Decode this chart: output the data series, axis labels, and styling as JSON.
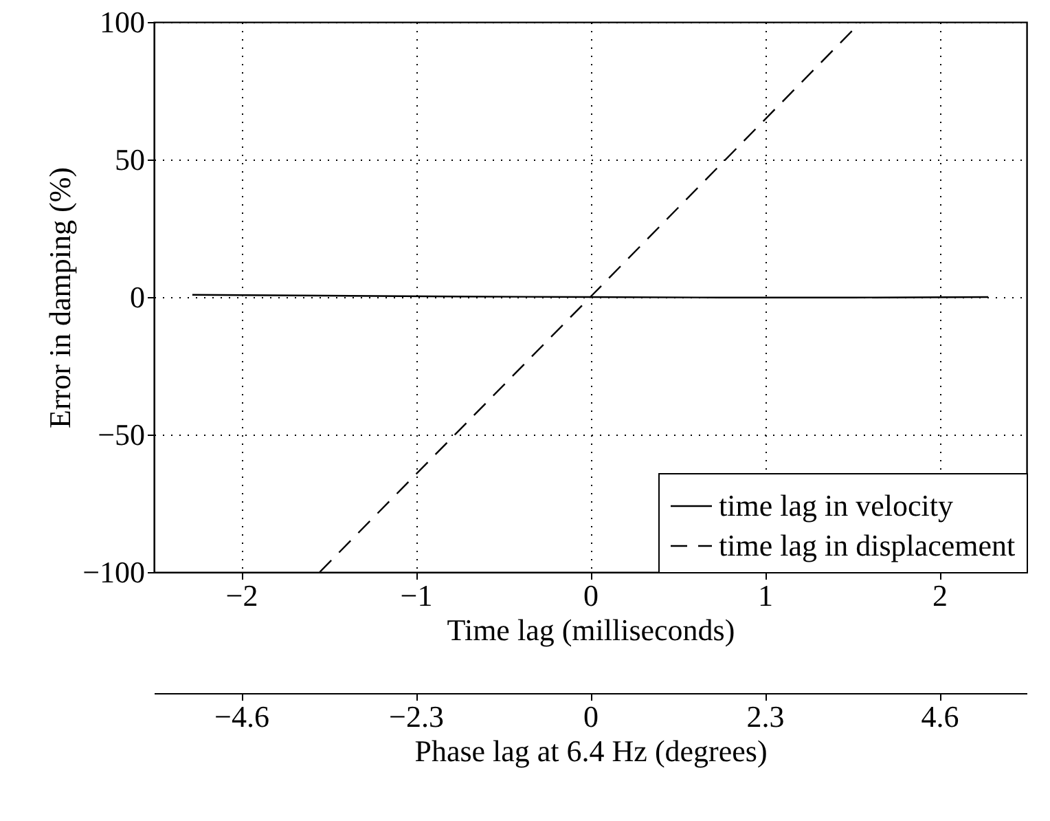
{
  "chart_data": {
    "type": "line",
    "xlabel": "Time lag (milliseconds)",
    "ylabel": "Error in damping (%)",
    "x2label": "Phase lag at 6.4 Hz (degrees)",
    "series": [
      {
        "name": "time lag in velocity",
        "color": "#000000",
        "line_style": "solid",
        "x": [
          -2.28,
          -1.5,
          -0.75,
          0,
          0.75,
          1.5,
          2.28
        ],
        "values": [
          0.8,
          0.5,
          0.2,
          0,
          -0.2,
          -0.2,
          0
        ]
      },
      {
        "name": "time lag in displacement",
        "color": "#000000",
        "line_style": "dashed",
        "x": [
          -1.55,
          0,
          1.55
        ],
        "values": [
          -100,
          0,
          100
        ]
      }
    ],
    "xlim": [
      -2.5,
      2.5
    ],
    "xticks": [
      {
        "value": -2,
        "label": "−2"
      },
      {
        "value": -1,
        "label": "−1"
      },
      0,
      1,
      2
    ],
    "ylim": [
      -100,
      100
    ],
    "yticks": [
      {
        "value": -100,
        "label": "−100"
      },
      {
        "value": -50,
        "label": "−50"
      },
      0,
      50,
      100
    ],
    "x2lim": [
      -5.76,
      5.76
    ],
    "x2ticks": [
      {
        "value": -4.608,
        "label": "−4.6"
      },
      {
        "value": -2.304,
        "label": "−2.3"
      },
      0,
      {
        "value": 2.304,
        "label": "2.3"
      },
      {
        "value": 4.608,
        "label": "4.6"
      }
    ],
    "grid": true,
    "legend": "bottom right",
    "marker": "none"
  }
}
